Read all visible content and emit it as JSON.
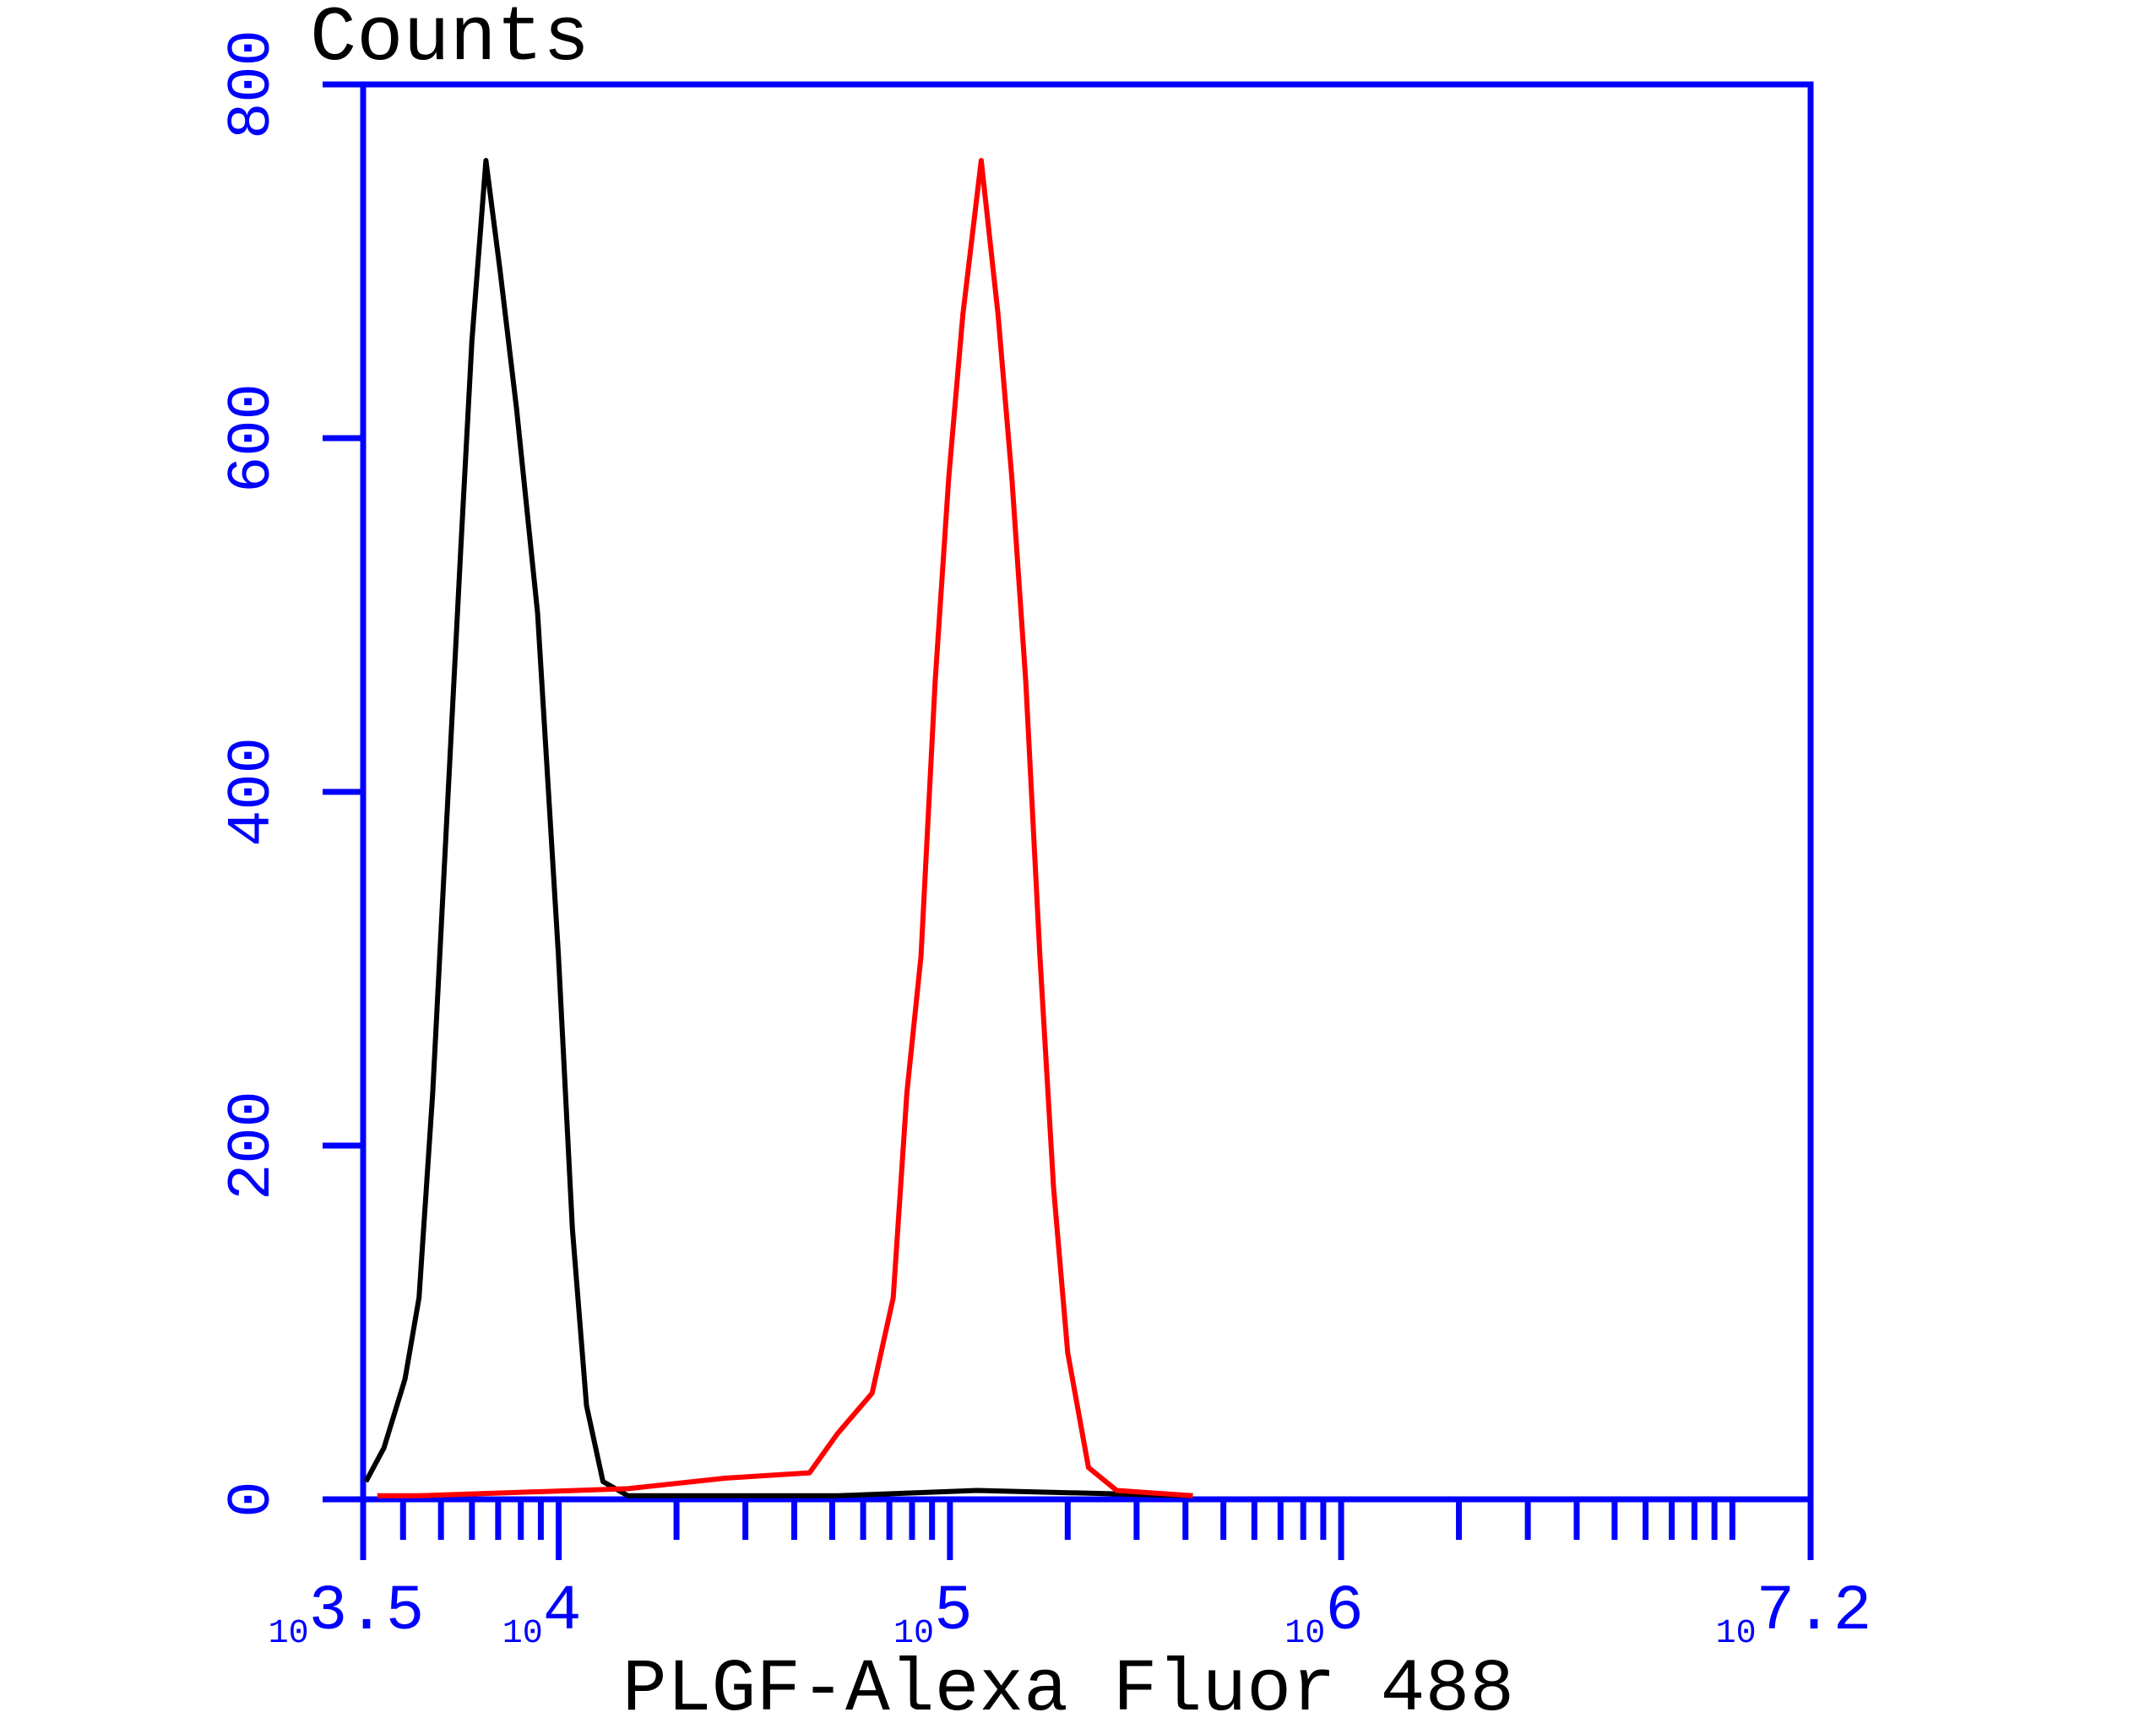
{
  "chart_data": {
    "type": "line",
    "y_label": "Counts",
    "x_label": "PLGF-Alexa Fluor 488",
    "xscale": "log",
    "xlim": [
      3162.28,
      15848932
    ],
    "xticks": [
      {
        "value": 3162.28,
        "label": "103.5"
      },
      {
        "value": 10000,
        "label": "104"
      },
      {
        "value": 100000,
        "label": "105"
      },
      {
        "value": 1000000,
        "label": "106"
      },
      {
        "value": 15848932,
        "label": "107.2"
      }
    ],
    "xticks_minor": [
      4000,
      5000,
      6000,
      7000,
      8000,
      9000,
      20000,
      30000,
      40000,
      50000,
      60000,
      70000,
      80000,
      90000,
      200000,
      300000,
      400000,
      500000,
      600000,
      700000,
      800000,
      900000,
      2000000,
      3000000,
      4000000,
      5000000,
      6000000,
      7000000,
      8000000,
      9000000,
      10000000
    ],
    "ylim": [
      0,
      800
    ],
    "yticks": [
      0,
      200,
      400,
      600,
      800
    ],
    "axis_color": "#0000ff",
    "series": [
      {
        "color": "#000000",
        "x": [
          3214,
          3573,
          4046,
          4395,
          4764,
          5176,
          5623,
          5998,
          6516,
          7079,
          7798,
          8831,
          9977,
          10839,
          11776,
          12972,
          15031,
          51523,
          117220,
          417830
        ],
        "values": [
          10,
          29,
          68,
          114,
          230,
          385,
          539,
          655,
          757,
          695,
          617,
          501,
          308,
          153,
          53,
          10,
          2,
          2,
          5,
          2
        ]
      },
      {
        "color": "#ff0000",
        "x": [
          3436,
          4395,
          15031,
          26730,
          43752,
          51523,
          63241,
          71614,
          77625,
          84333,
          91622,
          99312,
          107895,
          120226,
          132739,
          143880,
          156315,
          169824,
          184077,
          199986,
          225944,
          266686,
          417830
        ],
        "values": [
          2,
          2,
          6,
          12,
          15,
          37,
          60,
          114,
          230,
          307,
          462,
          578,
          670,
          757,
          670,
          578,
          462,
          307,
          176,
          83,
          18,
          5,
          2
        ]
      }
    ]
  }
}
